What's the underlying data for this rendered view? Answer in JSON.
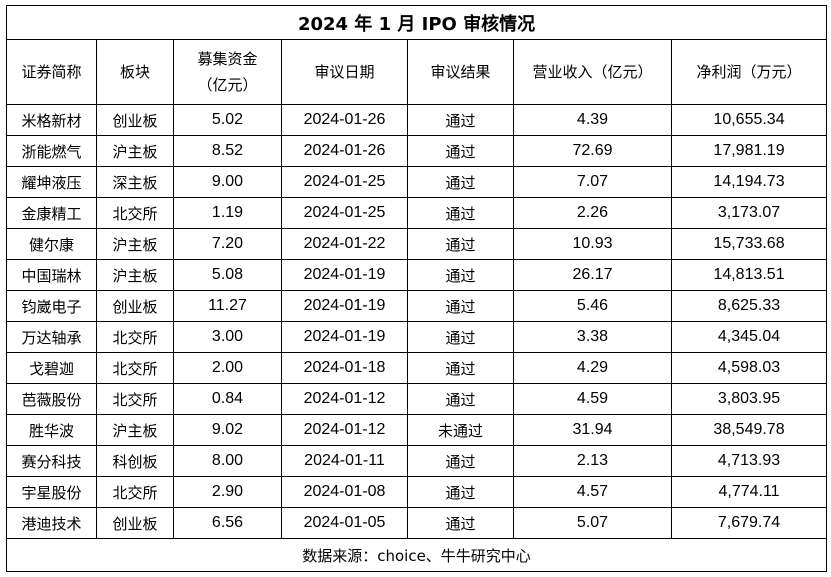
{
  "title": "2024 年 1 月 IPO 审核情况",
  "headers": [
    "证券简称",
    "板块",
    "募集资金\n（亿元）",
    "审议日期",
    "审议结果",
    "营业收入（亿元）",
    "净利润（万元）"
  ],
  "footer": "数据来源：choice、牛牛研究中心",
  "chart_data": {
    "type": "table",
    "title": "2024 年 1 月 IPO 审核情况",
    "columns": [
      "证券简称",
      "板块",
      "募集资金（亿元）",
      "审议日期",
      "审议结果",
      "营业收入（亿元）",
      "净利润（万元）"
    ],
    "rows": [
      [
        "米格新材",
        "创业板",
        "5.02",
        "2024-01-26",
        "通过",
        "4.39",
        "10,655.34"
      ],
      [
        "浙能燃气",
        "沪主板",
        "8.52",
        "2024-01-26",
        "通过",
        "72.69",
        "17,981.19"
      ],
      [
        "耀坤液压",
        "深主板",
        "9.00",
        "2024-01-25",
        "通过",
        "7.07",
        "14,194.73"
      ],
      [
        "金康精工",
        "北交所",
        "1.19",
        "2024-01-25",
        "通过",
        "2.26",
        "3,173.07"
      ],
      [
        "健尔康",
        "沪主板",
        "7.20",
        "2024-01-22",
        "通过",
        "10.93",
        "15,733.68"
      ],
      [
        "中国瑞林",
        "沪主板",
        "5.08",
        "2024-01-19",
        "通过",
        "26.17",
        "14,813.51"
      ],
      [
        "钧崴电子",
        "创业板",
        "11.27",
        "2024-01-19",
        "通过",
        "5.46",
        "8,625.33"
      ],
      [
        "万达轴承",
        "北交所",
        "3.00",
        "2024-01-19",
        "通过",
        "3.38",
        "4,345.04"
      ],
      [
        "戈碧迦",
        "北交所",
        "2.00",
        "2024-01-18",
        "通过",
        "4.29",
        "4,598.03"
      ],
      [
        "芭薇股份",
        "北交所",
        "0.84",
        "2024-01-12",
        "通过",
        "4.59",
        "3,803.95"
      ],
      [
        "胜华波",
        "沪主板",
        "9.02",
        "2024-01-12",
        "未通过",
        "31.94",
        "38,549.78"
      ],
      [
        "赛分科技",
        "科创板",
        "8.00",
        "2024-01-11",
        "通过",
        "2.13",
        "4,713.93"
      ],
      [
        "宇星股份",
        "北交所",
        "2.90",
        "2024-01-08",
        "通过",
        "4.57",
        "4,774.11"
      ],
      [
        "港迪技术",
        "创业板",
        "6.56",
        "2024-01-05",
        "通过",
        "5.07",
        "7,679.74"
      ]
    ]
  }
}
